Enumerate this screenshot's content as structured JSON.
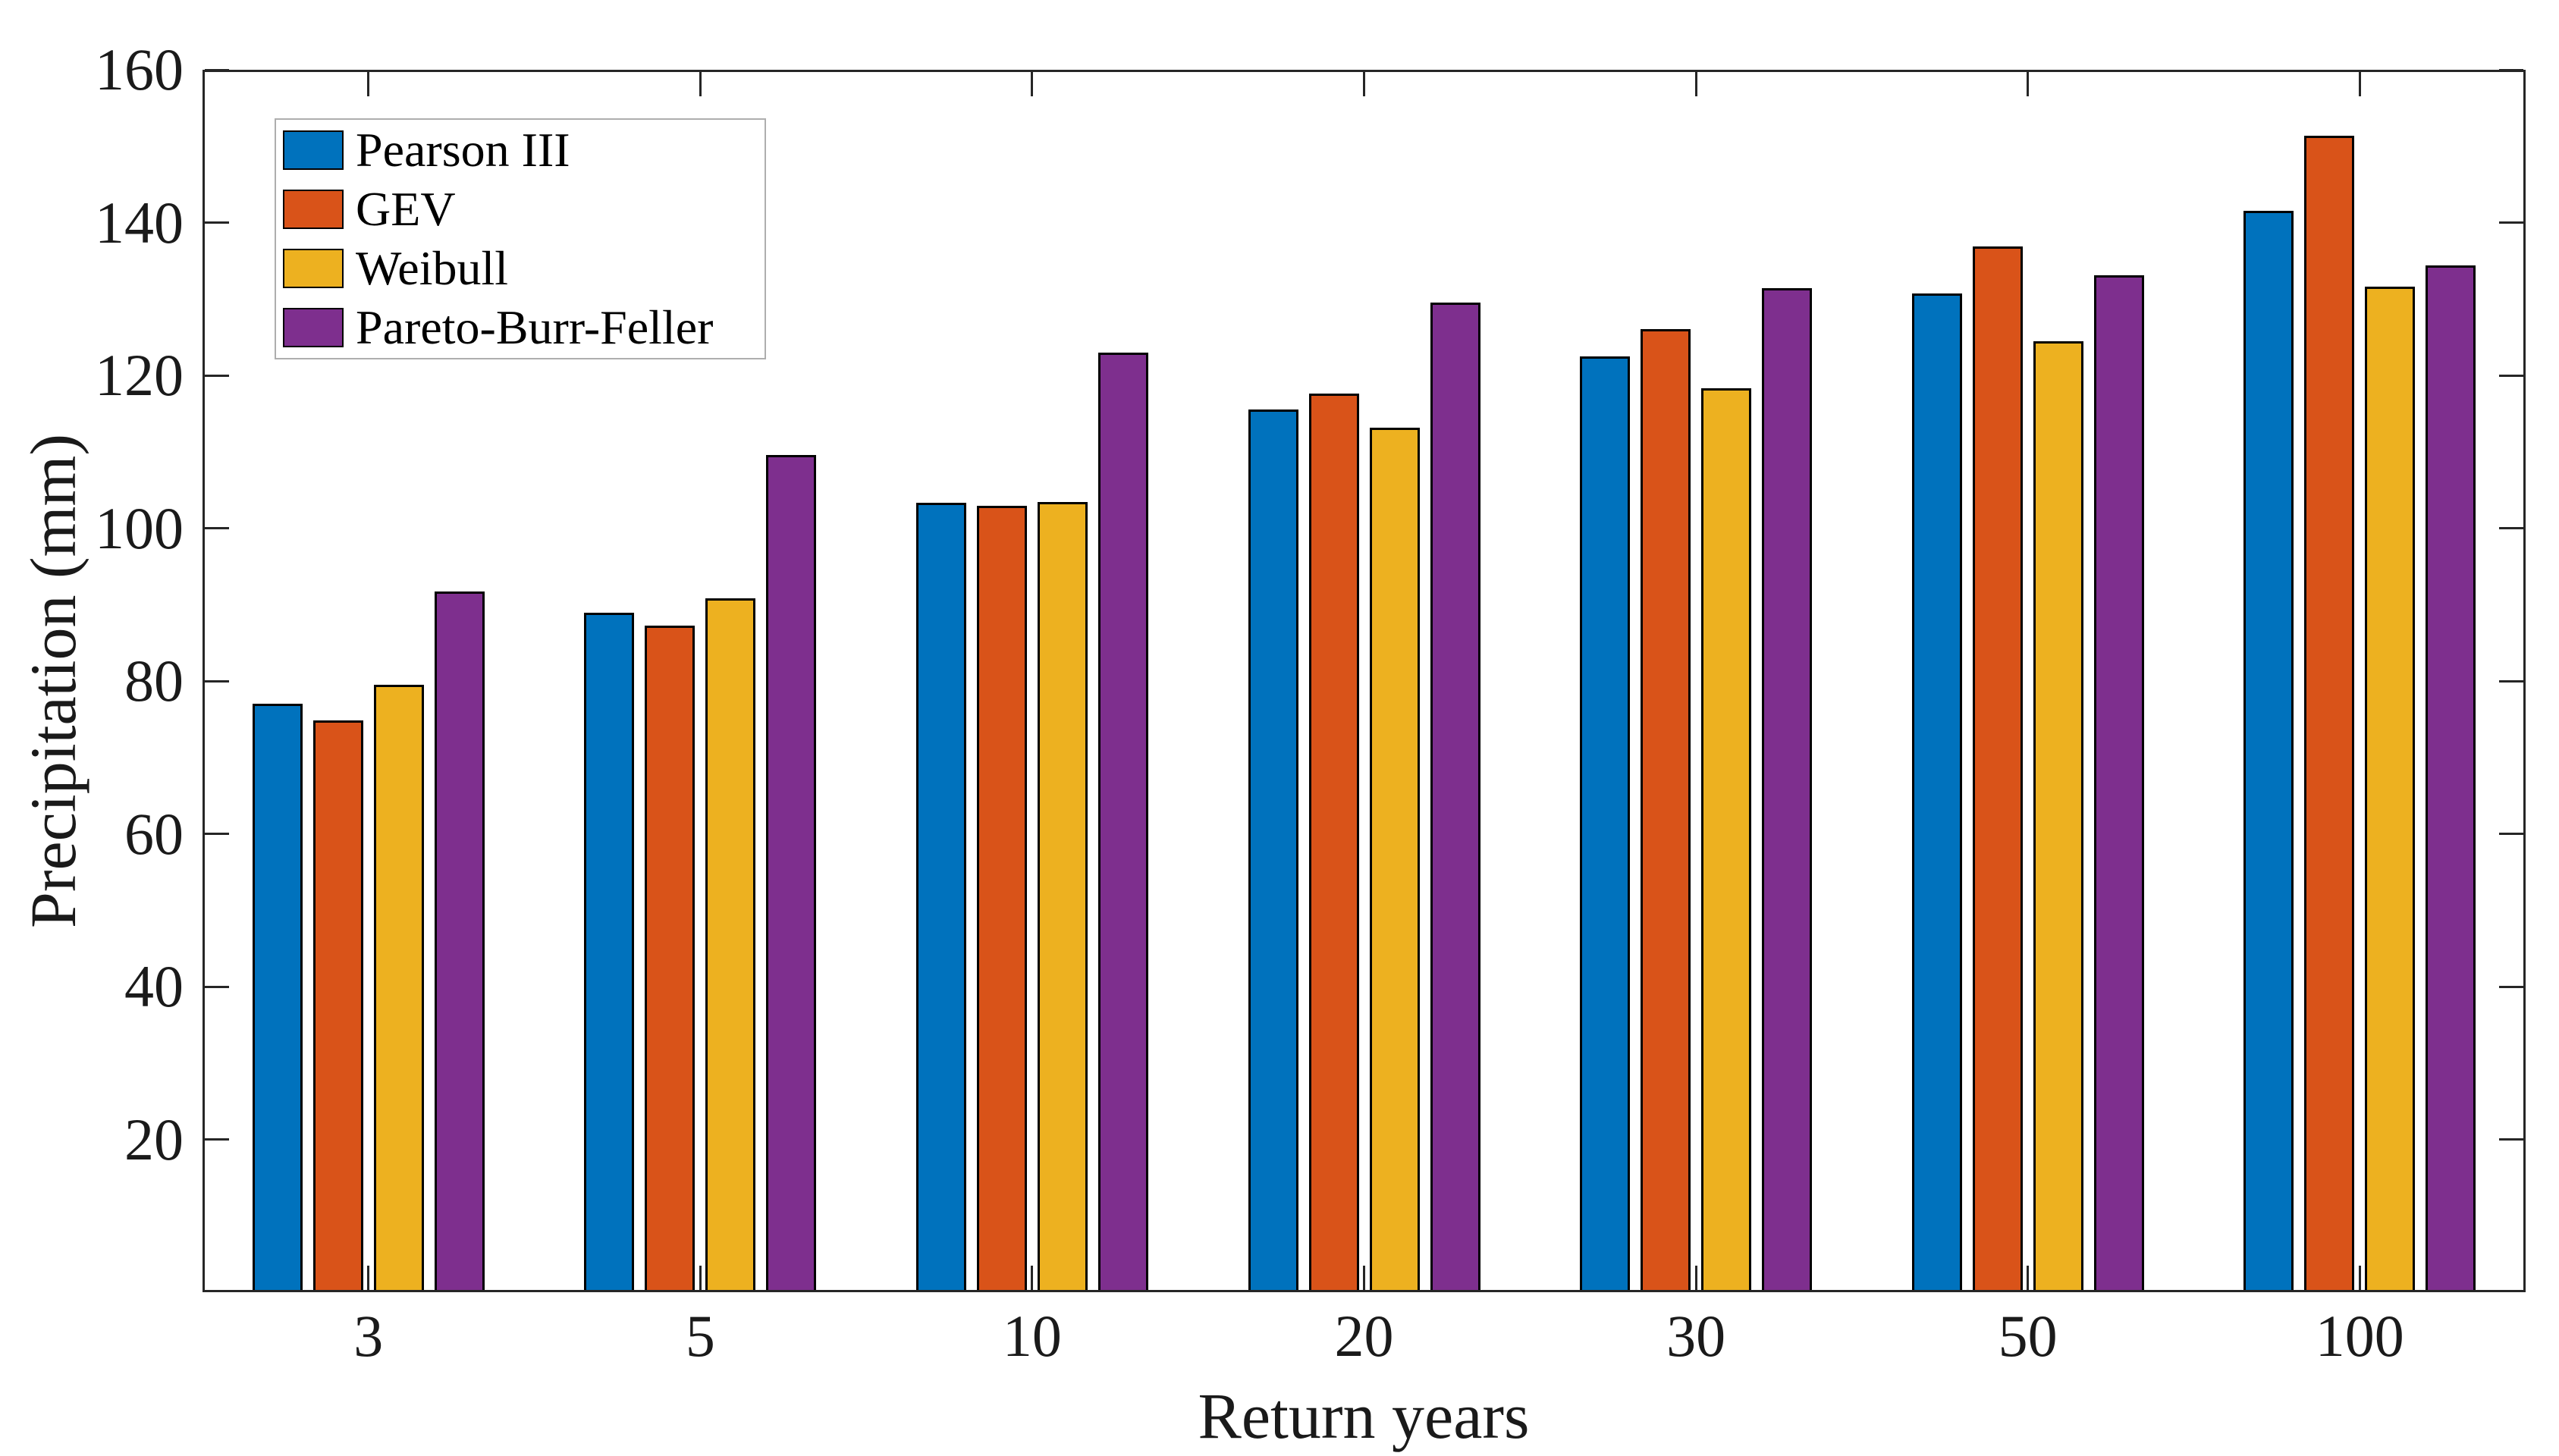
{
  "figure": {
    "background": "#ffffff",
    "axis_color": "#262626",
    "text_color": "#1a1a1a"
  },
  "chart_data": {
    "type": "bar",
    "title": "",
    "xlabel": "Return years",
    "ylabel": "Precipitation (mm)",
    "categories": [
      "3",
      "5",
      "10",
      "20",
      "30",
      "50",
      "100"
    ],
    "series": [
      {
        "name": "Pearson III",
        "color": "#0072BD",
        "values": [
          77.0,
          88.9,
          103.3,
          115.5,
          122.5,
          130.7,
          141.5
        ]
      },
      {
        "name": "GEV",
        "color": "#D95319",
        "values": [
          74.8,
          87.2,
          102.9,
          117.6,
          126.1,
          136.9,
          151.4
        ]
      },
      {
        "name": "Weibull",
        "color": "#EDB120",
        "values": [
          79.5,
          90.8,
          103.4,
          113.2,
          118.3,
          124.5,
          131.6
        ]
      },
      {
        "name": "Pareto-Burr-Feller",
        "color": "#7E2F8E",
        "values": [
          91.7,
          109.6,
          123.0,
          129.5,
          131.4,
          133.1,
          134.4
        ]
      }
    ],
    "ylim": [
      0,
      160
    ],
    "yticks": [
      20,
      40,
      60,
      80,
      100,
      120,
      140,
      160
    ],
    "grid": false,
    "legend_position": "top-left",
    "bar_edge_color": "#000000",
    "tick_direction": "in"
  }
}
